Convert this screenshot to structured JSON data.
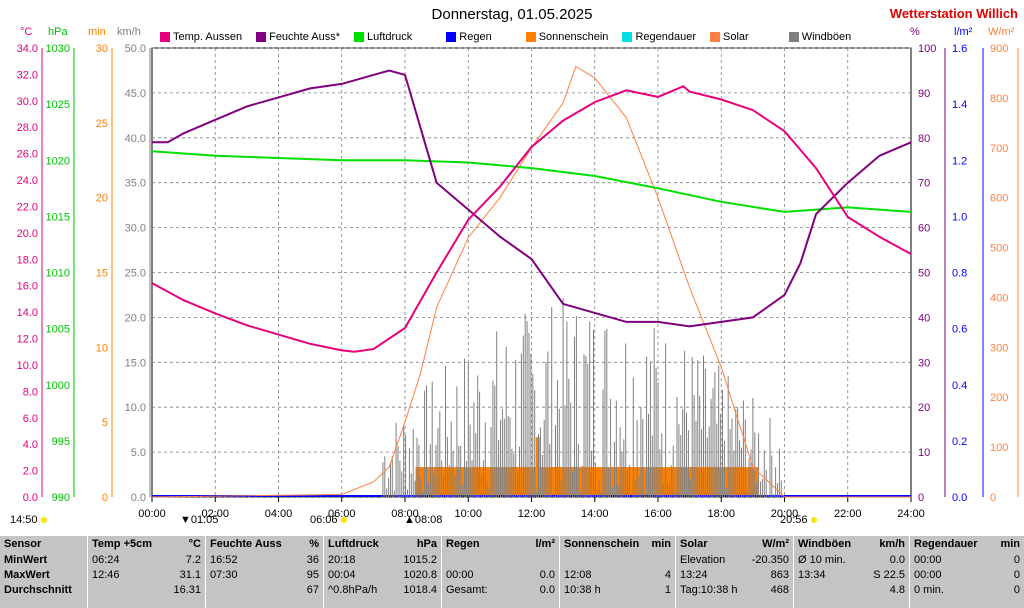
{
  "header": {
    "title": "Donnerstag, 01.05.2025",
    "brand": "Wetterstation Willich"
  },
  "legend": [
    {
      "label": "Temp. Aussen",
      "color": "#e6007e"
    },
    {
      "label": "Feuchte Auss*",
      "color": "#800080"
    },
    {
      "label": "Luftdruck",
      "color": "#00e000"
    },
    {
      "label": "Regen",
      "color": "#0000ff"
    },
    {
      "label": "Sonnenschein",
      "color": "#ff8000"
    },
    {
      "label": "Regendauer",
      "color": "#00e0e0"
    },
    {
      "label": "Solar",
      "color": "#ff8040"
    },
    {
      "label": "Windböen",
      "color": "#808080"
    }
  ],
  "units": {
    "temp": "°C",
    "pressure": "hPa",
    "min": "min",
    "kmh": "km/h",
    "humidity": "%",
    "rain": "l/m²",
    "solar": "W/m²"
  },
  "axes": {
    "temp_ticks": [
      "0.0",
      "2.0",
      "4.0",
      "6.0",
      "8.0",
      "10.0",
      "12.0",
      "14.0",
      "16.0",
      "18.0",
      "20.0",
      "22.0",
      "24.0",
      "26.0",
      "28.0",
      "30.0",
      "32.0",
      "34.0"
    ],
    "pressure_ticks": [
      "990",
      "995",
      "1000",
      "1005",
      "1010",
      "1015",
      "1020",
      "1025",
      "1030"
    ],
    "min_ticks": [
      "0",
      "5",
      "10",
      "15",
      "20",
      "25",
      "30"
    ],
    "kmh_ticks": [
      "0.0",
      "5.0",
      "10.0",
      "15.0",
      "20.0",
      "25.0",
      "30.0",
      "35.0",
      "40.0",
      "45.0",
      "50.0"
    ],
    "humidity_ticks": [
      "0",
      "10",
      "20",
      "30",
      "40",
      "50",
      "60",
      "70",
      "80",
      "90",
      "100"
    ],
    "rain_ticks": [
      "0.0",
      "0.2",
      "0.4",
      "0.6",
      "0.8",
      "1.0",
      "1.2",
      "1.4",
      "1.6"
    ],
    "solar_ticks": [
      "0",
      "100",
      "200",
      "300",
      "400",
      "500",
      "600",
      "700",
      "800",
      "900"
    ],
    "time_ticks": [
      "00:00",
      "02:00",
      "04:00",
      "06:00",
      "08:00",
      "10:00",
      "12:00",
      "14:00",
      "16:00",
      "18:00",
      "20:00",
      "22:00",
      "24:00"
    ]
  },
  "sun_row": {
    "left": "14:50",
    "moon1": "01:05",
    "sunrise": "06:06",
    "moon2": "08:08",
    "sunset": "20:56"
  },
  "colors": {
    "temp": "#e6007e",
    "humidity": "#800080",
    "pressure": "#00e000",
    "rain": "#0000ff",
    "sunshine": "#ff8000",
    "solar": "#ff8040",
    "gusts": "#808080",
    "grid": "#808080"
  },
  "chart_data": {
    "type": "line",
    "x_range": [
      "00:00",
      "24:00"
    ],
    "series": [
      {
        "name": "Temp. Aussen",
        "unit": "°C",
        "x": [
          0,
          1,
          2,
          3,
          4,
          5,
          6,
          6.4,
          7,
          8,
          9,
          10,
          11,
          12,
          13,
          14,
          15,
          16,
          16.8,
          17,
          18,
          19,
          20,
          21,
          22,
          23,
          24
        ],
        "values": [
          16.2,
          14.9,
          13.9,
          13.0,
          12.3,
          11.6,
          11.1,
          11.0,
          11.2,
          12.8,
          17.0,
          21.0,
          23.5,
          26.5,
          28.5,
          29.9,
          30.8,
          30.3,
          31.1,
          30.7,
          30.1,
          29.3,
          27.7,
          24.9,
          21.2,
          19.7,
          18.4
        ]
      },
      {
        "name": "Feuchte Auss*",
        "unit": "%",
        "x": [
          0,
          0.5,
          1,
          2,
          3,
          4,
          5,
          6,
          7,
          7.5,
          8,
          8.5,
          9,
          10,
          11,
          12,
          13,
          14,
          15,
          16,
          17,
          18,
          19,
          20,
          20.5,
          21,
          22,
          23,
          24
        ],
        "values": [
          79,
          79,
          81,
          84,
          87,
          89,
          91,
          92,
          94,
          95,
          94,
          82,
          70,
          64,
          58,
          53,
          43,
          41,
          39,
          39,
          38,
          39,
          40,
          45,
          52,
          63,
          70,
          76,
          79
        ]
      },
      {
        "name": "Luftdruck",
        "unit": "hPa",
        "x": [
          0,
          2,
          4,
          6,
          8,
          10,
          12,
          14,
          16,
          18,
          20,
          22,
          24
        ],
        "values": [
          1020.8,
          1020.4,
          1020.2,
          1020.0,
          1020.0,
          1019.8,
          1019.3,
          1018.6,
          1017.5,
          1016.3,
          1015.4,
          1015.8,
          1015.4
        ]
      },
      {
        "name": "Solar",
        "unit": "W/m²",
        "x": [
          0,
          6,
          7,
          7.5,
          8,
          8.5,
          9,
          10,
          11,
          12,
          13,
          13.4,
          14,
          15,
          16,
          17,
          18,
          19,
          20,
          24
        ],
        "values": [
          0,
          5,
          30,
          60,
          150,
          250,
          380,
          520,
          600,
          700,
          790,
          863,
          840,
          760,
          600,
          420,
          260,
          60,
          0,
          0
        ]
      },
      {
        "name": "Windböen",
        "unit": "km/h",
        "values_summary": {
          "max": 22.5,
          "avg": 4.8,
          "max_time": "13:34"
        }
      },
      {
        "name": "Sonnenschein",
        "unit": "min",
        "x_start": "08:20",
        "x_end": "19:10",
        "value": 2,
        "peaks": [
          {
            "time": "12:08",
            "value": 4
          }
        ]
      }
    ],
    "xlabel": "",
    "ylim_temp": [
      0,
      34
    ],
    "ylim_humidity": [
      0,
      100
    ],
    "ylim_pressure": [
      990,
      1030
    ],
    "ylim_solar": [
      0,
      900
    ]
  },
  "table": {
    "labels": {
      "sensor": "Sensor",
      "min": "MinWert",
      "max": "MaxWert",
      "avg": "Durchschnitt"
    },
    "temp": {
      "h1": "Temp +5cm",
      "h2": "°C",
      "min_t": "06:24",
      "min_v": "7.2",
      "max_t": "12:46",
      "max_v": "31.1",
      "avg_v": "16.31"
    },
    "hum": {
      "h1": "Feuchte Auss",
      "h2": "%",
      "min_t": "16:52",
      "min_v": "36",
      "max_t": "07:30",
      "max_v": "95",
      "avg_v": "67"
    },
    "press": {
      "h1": "Luftdruck",
      "h2": "hPa",
      "min_t": "20:18",
      "min_v": "1015.2",
      "max_t": "00:04",
      "max_v": "1020.8",
      "avg_t": "^0.8hPa/h",
      "avg_v": "1018.4"
    },
    "rain": {
      "h1": "Regen",
      "h2": "l/m²",
      "max_t": "00:00",
      "max_v": "0.0",
      "avg_t": "Gesamt:",
      "avg_v": "0.0"
    },
    "sun": {
      "h1": "Sonnenschein",
      "h2": "min",
      "max_t": "12:08",
      "max_v": "4",
      "avg_t": "10:38 h",
      "avg_v": "1"
    },
    "solar": {
      "h1": "Solar",
      "h2": "W/m²",
      "min_t": "Elevation",
      "min_v": "-20.350",
      "max_t": "13:24",
      "max_v": "863",
      "avg_t": "Tag:10:38 h",
      "avg_v": "468"
    },
    "wind": {
      "h1": "Windböen",
      "h2": "km/h",
      "min_t": "Ø 10 min.",
      "min_v": "0.0",
      "max_t": "13:34",
      "max_v": "S 22.5",
      "avg_v": "4.8"
    },
    "rdur": {
      "h1": "Regendauer",
      "h2": "min",
      "min_t": "00:00",
      "min_v": "0",
      "max_t": "00:00",
      "max_v": "0",
      "avg_t": "0 min.",
      "avg_v": "0"
    }
  }
}
